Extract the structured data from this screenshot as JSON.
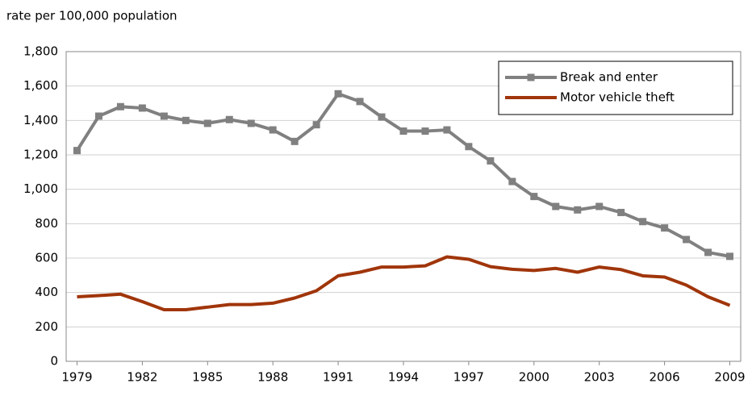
{
  "chart_data": {
    "type": "line",
    "y_axis_label": "rate per 100,000 population",
    "x": [
      1979,
      1980,
      1981,
      1982,
      1983,
      1984,
      1985,
      1986,
      1987,
      1988,
      1989,
      1990,
      1991,
      1992,
      1993,
      1994,
      1995,
      1996,
      1997,
      1998,
      1999,
      2000,
      2001,
      2002,
      2003,
      2004,
      2005,
      2006,
      2007,
      2008,
      2009
    ],
    "series": [
      {
        "name": "Break and enter",
        "color": "#808080",
        "marker": "square",
        "values": [
          1225,
          1425,
          1480,
          1472,
          1425,
          1400,
          1383,
          1405,
          1383,
          1345,
          1278,
          1375,
          1555,
          1510,
          1420,
          1338,
          1338,
          1345,
          1248,
          1165,
          1045,
          958,
          900,
          880,
          900,
          865,
          812,
          775,
          708,
          633,
          610
        ]
      },
      {
        "name": "Motor vehicle theft",
        "color": "#a0350a",
        "values": [
          375,
          382,
          390,
          347,
          300,
          300,
          315,
          330,
          330,
          338,
          368,
          410,
          497,
          518,
          548,
          548,
          555,
          607,
          593,
          550,
          535,
          528,
          540,
          518,
          548,
          533,
          497,
          490,
          443,
          375,
          325
        ]
      }
    ],
    "xlim": [
      1978.5,
      2009.5
    ],
    "xticks": [
      1979,
      1982,
      1985,
      1988,
      1991,
      1994,
      1997,
      2000,
      2003,
      2006,
      2009
    ],
    "ylim": [
      0,
      1800
    ],
    "yticks": [
      0,
      200,
      400,
      600,
      800,
      {
        "value": 1000,
        "label": "1,000"
      },
      {
        "value": 1200,
        "label": "1,200"
      },
      {
        "value": 1400,
        "label": "1,400"
      },
      {
        "value": 1600,
        "label": "1,600"
      },
      {
        "value": 1800,
        "label": "1,800"
      }
    ],
    "grid": true,
    "legend": "top-right"
  }
}
